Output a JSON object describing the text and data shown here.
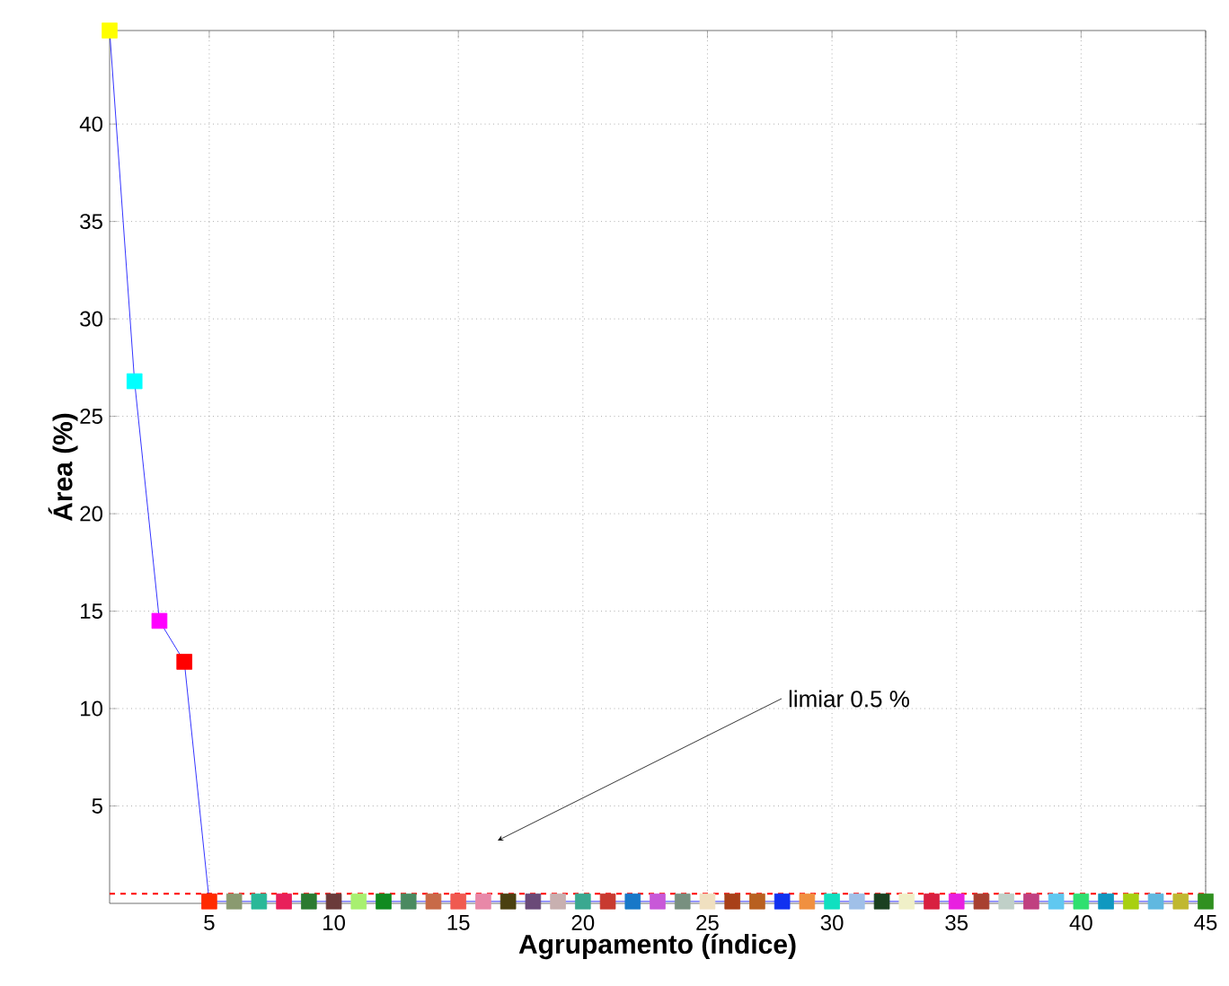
{
  "chart_data": {
    "type": "line",
    "xlabel": "Agrupamento (índice)",
    "ylabel": "Área (%)",
    "x": [
      1,
      2,
      3,
      4,
      5,
      6,
      7,
      8,
      9,
      10,
      11,
      12,
      13,
      14,
      15,
      16,
      17,
      18,
      19,
      20,
      21,
      22,
      23,
      24,
      25,
      26,
      27,
      28,
      29,
      30,
      31,
      32,
      33,
      34,
      35,
      36,
      37,
      38,
      39,
      40,
      41,
      42,
      43,
      44,
      45
    ],
    "series": [
      {
        "color": "#0000ff",
        "values": [
          44.8,
          26.8,
          14.5,
          12.4,
          0.1,
          0.1,
          0.1,
          0.1,
          0.1,
          0.1,
          0.1,
          0.1,
          0.1,
          0.1,
          0.1,
          0.1,
          0.1,
          0.1,
          0.1,
          0.1,
          0.1,
          0.1,
          0.1,
          0.1,
          0.1,
          0.1,
          0.1,
          0.1,
          0.1,
          0.1,
          0.1,
          0.1,
          0.1,
          0.1,
          0.1,
          0.1,
          0.1,
          0.1,
          0.1,
          0.1,
          0.1,
          0.1,
          0.1,
          0.1,
          0.1
        ],
        "colors": [
          "#ffff00",
          "#00ffff",
          "#ff00ff",
          "#ff0000",
          "#ff2a00",
          "#8a9a70",
          "#2ab898",
          "#e8205a",
          "#2a7a30",
          "#6a3a3a",
          "#a8f070",
          "#108a20",
          "#4a8a60",
          "#c86a48",
          "#f05a50",
          "#e888a8",
          "#4a4010",
          "#6a4a78",
          "#c8b0b0",
          "#3aa890",
          "#c83a30",
          "#1878c8",
          "#c858d8",
          "#789080",
          "#f0e0c0",
          "#a84018",
          "#b86020",
          "#1030f0",
          "#f09040",
          "#10e0c0",
          "#a0c0e8",
          "#1a4020",
          "#f0f0c8",
          "#d82040",
          "#e820e0",
          "#a84030",
          "#c0d0c8",
          "#c04080",
          "#60c8f0",
          "#30e070",
          "#1098c0",
          "#a8d010",
          "#60b8e0",
          "#c0b830",
          "#309020"
        ]
      }
    ],
    "marker": "square",
    "line_style": "solid",
    "grid": true,
    "xlim": [
      1,
      45
    ],
    "ylim": [
      0,
      44.8
    ],
    "xticks": [
      5,
      10,
      15,
      20,
      25,
      30,
      35,
      40,
      45
    ],
    "yticks": [
      5,
      10,
      15,
      20,
      25,
      30,
      35,
      40
    ],
    "ref_lines": [
      {
        "axis": "y",
        "value": 0.5,
        "color": "#ff0000",
        "line_style": "dashed"
      }
    ],
    "annotations": [
      "limiar 0.5 %"
    ]
  }
}
